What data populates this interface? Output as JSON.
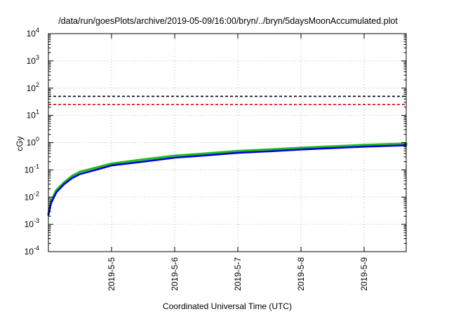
{
  "chart_data": {
    "type": "line",
    "title": "/data/run/goesPlots/archive/2019-05-09/16:00/bryn/../bryn/5daysMoonAccumulated.plot",
    "xlabel": "Coordinated Universal Time (UTC)",
    "ylabel": "cGy",
    "yscale": "log",
    "ylim_exponent": [
      -4,
      4
    ],
    "ytick_labels": [
      {
        "base": "10",
        "exp": "-4"
      },
      {
        "base": "10",
        "exp": "-3"
      },
      {
        "base": "10",
        "exp": "-2"
      },
      {
        "base": "10",
        "exp": "-1"
      },
      {
        "base": "10",
        "exp": "0"
      },
      {
        "base": "10",
        "exp": "1"
      },
      {
        "base": "10",
        "exp": "2"
      },
      {
        "base": "10",
        "exp": "3"
      },
      {
        "base": "10",
        "exp": "4"
      }
    ],
    "xlim": [
      "2019-05-04 00:00",
      "2019-05-09 16:00"
    ],
    "xtick_labels": [
      "2019-5-5",
      "2019-5-6",
      "2019-5-7",
      "2019-5-8",
      "2019-5-9"
    ],
    "grid": true,
    "legend": "none",
    "thresholds": [
      {
        "value": 50,
        "color": "#000000",
        "style": "dashed"
      },
      {
        "value": 25,
        "color": "#e00000",
        "style": "dashed"
      }
    ],
    "x": [
      "2019-05-04 00:00",
      "2019-05-04 01:00",
      "2019-05-04 03:00",
      "2019-05-04 06:00",
      "2019-05-04 09:00",
      "2019-05-04 12:00",
      "2019-05-04 18:00",
      "2019-05-05 00:00",
      "2019-05-05 12:00",
      "2019-05-06 00:00",
      "2019-05-06 12:00",
      "2019-05-07 00:00",
      "2019-05-07 12:00",
      "2019-05-08 00:00",
      "2019-05-08 12:00",
      "2019-05-09 00:00",
      "2019-05-09 16:00"
    ],
    "series": [
      {
        "color": "#22bb22",
        "values": [
          0.0024,
          0.007,
          0.018,
          0.035,
          0.06,
          0.085,
          0.12,
          0.17,
          0.24,
          0.33,
          0.4,
          0.49,
          0.56,
          0.65,
          0.73,
          0.82,
          0.92
        ]
      },
      {
        "color": "#0000dd",
        "values": [
          0.0022,
          0.006,
          0.015,
          0.03,
          0.05,
          0.07,
          0.1,
          0.145,
          0.2,
          0.28,
          0.34,
          0.42,
          0.48,
          0.56,
          0.63,
          0.71,
          0.8
        ]
      }
    ]
  }
}
